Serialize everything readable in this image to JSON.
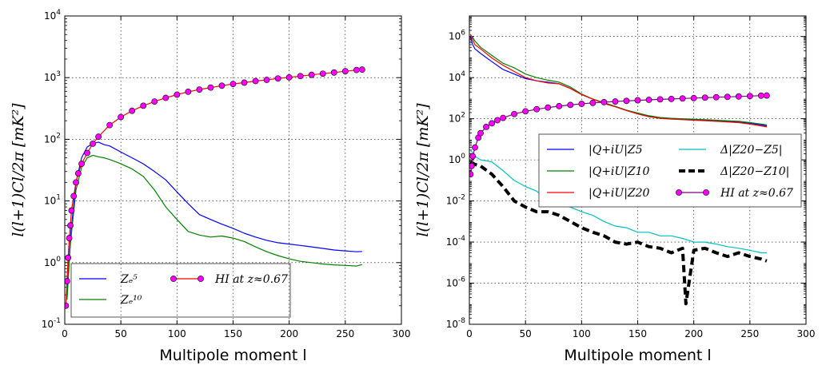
{
  "chart_data": [
    {
      "type": "line",
      "panel": "left",
      "xlabel": "Multipole moment l",
      "ylabel": "l(l+1)Cl/2π [mK²]",
      "xlim": [
        0,
        300
      ],
      "ylim": [
        0.1,
        10000
      ],
      "yscale": "log",
      "grid": true,
      "x_ticks": [
        "0",
        "50",
        "100",
        "150",
        "200",
        "250",
        "300"
      ],
      "y_ticks": [
        {
          "base": "10",
          "exp": "-1"
        },
        {
          "base": "10",
          "exp": "0"
        },
        {
          "base": "10",
          "exp": "1"
        },
        {
          "base": "10",
          "exp": "2"
        },
        {
          "base": "10",
          "exp": "3"
        },
        {
          "base": "10",
          "exp": "4"
        }
      ],
      "legend_position": "lower-center",
      "series": [
        {
          "name": "Z_e^5",
          "legend": "Zₑ⁵",
          "color": "#0000ff",
          "x": [
            2,
            5,
            10,
            15,
            20,
            25,
            30,
            35,
            40,
            50,
            60,
            70,
            80,
            90,
            100,
            110,
            120,
            130,
            140,
            150,
            160,
            170,
            180,
            190,
            200,
            210,
            220,
            230,
            240,
            250,
            260,
            265
          ],
          "y": [
            0.3,
            2.5,
            20,
            50,
            75,
            85,
            90,
            82,
            78,
            62,
            50,
            40,
            30,
            22,
            14,
            9,
            6,
            5,
            4.2,
            3.6,
            3.0,
            2.6,
            2.3,
            2.1,
            2.0,
            1.9,
            1.8,
            1.7,
            1.6,
            1.55,
            1.5,
            1.52
          ]
        },
        {
          "name": "Z_e^10",
          "legend": "Zₑ¹⁰",
          "color": "#008000",
          "x": [
            2,
            5,
            10,
            15,
            20,
            25,
            30,
            35,
            40,
            50,
            60,
            70,
            80,
            90,
            100,
            110,
            120,
            130,
            140,
            150,
            160,
            170,
            180,
            190,
            200,
            210,
            220,
            230,
            240,
            250,
            260,
            265
          ],
          "y": [
            0.25,
            2,
            15,
            35,
            50,
            55,
            52,
            50,
            47,
            40,
            33,
            25,
            15,
            8,
            5,
            3.2,
            2.8,
            2.6,
            2.7,
            2.5,
            2.2,
            1.8,
            1.5,
            1.3,
            1.15,
            1.05,
            1.0,
            0.95,
            0.92,
            0.9,
            0.88,
            0.93
          ]
        },
        {
          "name": "HI at z≈0.67",
          "legend": "HI at z≈0.67",
          "color": "#ff00ff",
          "line_color": "#ff0000",
          "marker": "circle",
          "x": [
            1,
            2,
            3,
            4,
            5,
            6,
            8,
            10,
            12,
            15,
            20,
            25,
            30,
            40,
            50,
            60,
            70,
            80,
            90,
            100,
            110,
            120,
            130,
            140,
            150,
            160,
            170,
            180,
            190,
            200,
            210,
            220,
            230,
            240,
            250,
            260,
            265
          ],
          "y": [
            0.2,
            0.5,
            1.2,
            2.5,
            4,
            7,
            12,
            20,
            28,
            40,
            60,
            85,
            110,
            170,
            230,
            290,
            350,
            410,
            470,
            530,
            590,
            640,
            690,
            740,
            790,
            830,
            880,
            920,
            970,
            1010,
            1060,
            1110,
            1160,
            1210,
            1270,
            1330,
            1350
          ]
        }
      ]
    },
    {
      "type": "line",
      "panel": "right",
      "xlabel": "Multipole moment l",
      "ylabel": "l(l+1)Cl/2π [mK²]",
      "xlim": [
        0,
        300
      ],
      "ylim": [
        1e-08,
        10000000.0
      ],
      "yscale": "log",
      "grid": true,
      "x_ticks": [
        "0",
        "50",
        "100",
        "150",
        "200",
        "250",
        "300"
      ],
      "y_ticks": [
        {
          "base": "10",
          "exp": "-8"
        },
        {
          "base": "10",
          "exp": "-6"
        },
        {
          "base": "10",
          "exp": "-4"
        },
        {
          "base": "10",
          "exp": "-2"
        },
        {
          "base": "10",
          "exp": "0"
        },
        {
          "base": "10",
          "exp": "2"
        },
        {
          "base": "10",
          "exp": "4"
        },
        {
          "base": "10",
          "exp": "6"
        }
      ],
      "legend_position": "center-right",
      "series": [
        {
          "name": "|Q+iU|_Z5",
          "legend": "|Q+iU|Z5",
          "color": "#0000ff",
          "x": [
            1,
            3,
            5,
            10,
            20,
            30,
            40,
            50,
            60,
            70,
            80,
            90,
            100,
            110,
            120,
            130,
            140,
            150,
            160,
            170,
            180,
            190,
            200,
            210,
            220,
            230,
            240,
            250,
            260,
            265
          ],
          "y": [
            1000000,
            400000,
            250000,
            150000,
            60000,
            25000,
            15000,
            9000,
            7000,
            6000,
            5000,
            3000,
            1500,
            900,
            600,
            400,
            260,
            180,
            130,
            110,
            100,
            95,
            90,
            85,
            80,
            75,
            70,
            60,
            50,
            45
          ]
        },
        {
          "name": "|Q+iU|_Z10",
          "legend": "|Q+iU|Z10",
          "color": "#008000",
          "x": [
            1,
            3,
            5,
            10,
            20,
            30,
            40,
            50,
            60,
            70,
            80,
            90,
            100,
            110,
            120,
            130,
            140,
            150,
            160,
            170,
            180,
            190,
            200,
            210,
            220,
            230,
            240,
            250,
            260,
            265
          ],
          "y": [
            1200000,
            900000,
            600000,
            300000,
            120000,
            50000,
            30000,
            15000,
            10000,
            7500,
            6000,
            3500,
            1600,
            900,
            600,
            400,
            260,
            190,
            140,
            115,
            105,
            100,
            95,
            90,
            85,
            80,
            75,
            65,
            55,
            50
          ]
        },
        {
          "name": "|Q+iU|_Z20",
          "legend": "|Q+iU|Z20",
          "color": "#ff0000",
          "x": [
            1,
            3,
            5,
            10,
            20,
            30,
            40,
            50,
            60,
            70,
            80,
            90,
            100,
            110,
            120,
            130,
            140,
            150,
            160,
            170,
            180,
            190,
            200,
            210,
            220,
            230,
            240,
            250,
            260,
            265
          ],
          "y": [
            1300000,
            700000,
            400000,
            250000,
            90000,
            40000,
            20000,
            10000,
            7000,
            5500,
            5000,
            3000,
            1500,
            900,
            550,
            380,
            250,
            170,
            125,
            105,
            95,
            90,
            85,
            80,
            75,
            70,
            65,
            55,
            45,
            40
          ]
        },
        {
          "name": "Δ|Z20-Z5|",
          "legend": "Δ|Z20−Z5|",
          "color": "#00bfbf",
          "x": [
            1,
            5,
            10,
            20,
            30,
            40,
            50,
            60,
            70,
            80,
            90,
            100,
            110,
            120,
            130,
            140,
            150,
            160,
            170,
            180,
            190,
            200,
            210,
            220,
            230,
            240,
            250,
            260,
            265
          ],
          "y": [
            3,
            1.5,
            1,
            0.8,
            0.3,
            0.1,
            0.05,
            0.03,
            0.01,
            0.006,
            0.005,
            0.003,
            0.002,
            0.001,
            0.0006,
            0.0005,
            0.0003,
            0.0003,
            0.0002,
            0.0002,
            0.00015,
            0.0001,
            0.0001,
            8e-05,
            6e-05,
            5e-05,
            4e-05,
            3e-05,
            3e-05
          ]
        },
        {
          "name": "Δ|Z20-Z10|",
          "legend": "Δ|Z20−Z10|",
          "color": "#000000",
          "dashed": true,
          "x": [
            1,
            5,
            10,
            20,
            25,
            30,
            40,
            50,
            60,
            70,
            80,
            90,
            100,
            110,
            120,
            130,
            140,
            150,
            160,
            170,
            180,
            190,
            193,
            200,
            210,
            220,
            230,
            240,
            250,
            260,
            265
          ],
          "y": [
            0.8,
            0.6,
            0.5,
            0.2,
            0.1,
            0.05,
            0.01,
            0.005,
            0.003,
            0.003,
            0.002,
            0.001,
            0.0005,
            0.0003,
            0.0002,
            0.0001,
            8e-05,
            0.0001,
            6e-05,
            5e-05,
            3e-05,
            5e-05,
            1e-07,
            4e-05,
            5e-05,
            3e-05,
            2e-05,
            3e-05,
            2e-05,
            1.5e-05,
            1.2e-05
          ]
        },
        {
          "name": "HI at z≈0.67",
          "legend": "HI at z≈0.67",
          "color": "#ff00ff",
          "line_color": "#800080",
          "marker": "circle",
          "x": [
            1,
            2,
            3,
            5,
            8,
            10,
            15,
            20,
            25,
            30,
            40,
            50,
            60,
            70,
            80,
            90,
            100,
            110,
            120,
            130,
            140,
            150,
            160,
            170,
            180,
            190,
            200,
            210,
            220,
            230,
            240,
            250,
            260,
            265
          ],
          "y": [
            0.2,
            0.5,
            1.5,
            4,
            12,
            20,
            40,
            60,
            85,
            110,
            170,
            230,
            290,
            350,
            410,
            470,
            530,
            590,
            640,
            690,
            740,
            790,
            830,
            880,
            920,
            970,
            1010,
            1060,
            1110,
            1160,
            1210,
            1270,
            1330,
            1350
          ]
        }
      ]
    }
  ]
}
